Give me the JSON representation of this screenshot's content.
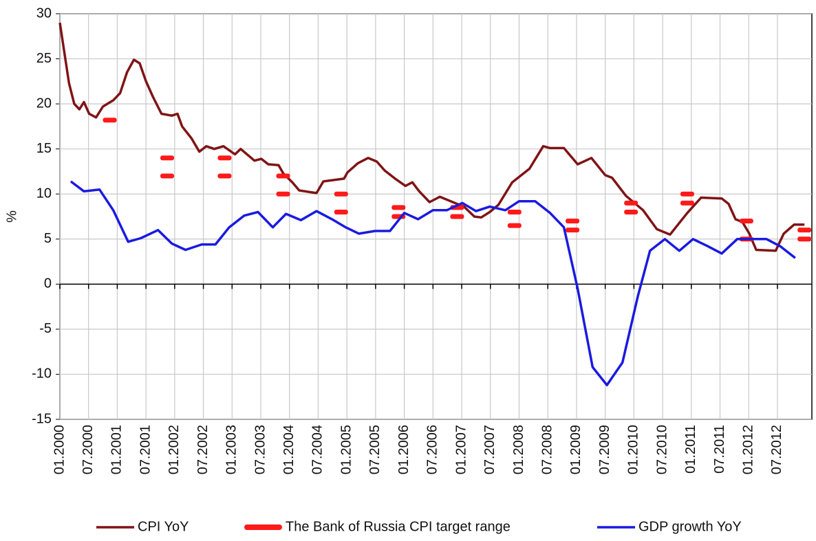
{
  "chart_data": {
    "type": "line",
    "ylabel": "%",
    "xlim": [
      2000,
      2013.1
    ],
    "ylim": [
      -15,
      30
    ],
    "yticks": [
      -15,
      -10,
      -5,
      0,
      5,
      10,
      15,
      20,
      25,
      30
    ],
    "xticks": [
      {
        "value": 2000,
        "label": "01.2000"
      },
      {
        "value": 2000.5,
        "label": "07.2000"
      },
      {
        "value": 2001,
        "label": "01.2001"
      },
      {
        "value": 2001.5,
        "label": "07.2001"
      },
      {
        "value": 2002,
        "label": "01.2002"
      },
      {
        "value": 2002.5,
        "label": "07.2002"
      },
      {
        "value": 2003,
        "label": "01.2003"
      },
      {
        "value": 2003.5,
        "label": "07.2003"
      },
      {
        "value": 2004,
        "label": "01.2004"
      },
      {
        "value": 2004.5,
        "label": "07.2004"
      },
      {
        "value": 2005,
        "label": "01.2005"
      },
      {
        "value": 2005.5,
        "label": "07.2005"
      },
      {
        "value": 2006,
        "label": "01.2006"
      },
      {
        "value": 2006.5,
        "label": "07.2006"
      },
      {
        "value": 2007,
        "label": "01.2007"
      },
      {
        "value": 2007.5,
        "label": "07.2007"
      },
      {
        "value": 2008,
        "label": "01.2008"
      },
      {
        "value": 2008.5,
        "label": "07.2008"
      },
      {
        "value": 2009,
        "label": "01.2009"
      },
      {
        "value": 2009.5,
        "label": "07.2009"
      },
      {
        "value": 2010,
        "label": "01.2010"
      },
      {
        "value": 2010.5,
        "label": "07.2010"
      },
      {
        "value": 2011,
        "label": "01.2011"
      },
      {
        "value": 2011.5,
        "label": "07.2011"
      },
      {
        "value": 2012,
        "label": "01.2012"
      },
      {
        "value": 2012.5,
        "label": "07.2012"
      }
    ],
    "grid": true,
    "legend": "bottom",
    "series": [
      {
        "name": "CPI YoY",
        "color": "#7f1416",
        "marker": "line",
        "x": [
          2000.0,
          2000.16,
          2000.25,
          2000.34,
          2000.42,
          2000.51,
          2000.63,
          2000.75,
          2000.93,
          2001.05,
          2001.17,
          2001.29,
          2001.39,
          2001.5,
          2001.62,
          2001.77,
          2001.95,
          2002.05,
          2002.13,
          2002.29,
          2002.43,
          2002.55,
          2002.69,
          2002.85,
          2003.05,
          2003.15,
          2003.39,
          2003.51,
          2003.63,
          2003.81,
          2003.89,
          2004.05,
          2004.17,
          2004.47,
          2004.59,
          2004.95,
          2005.01,
          2005.19,
          2005.37,
          2005.52,
          2005.66,
          2005.84,
          2006.02,
          2006.14,
          2006.26,
          2006.44,
          2006.62,
          2006.92,
          2007.04,
          2007.22,
          2007.34,
          2007.49,
          2007.64,
          2007.88,
          2008.18,
          2008.42,
          2008.54,
          2008.78,
          2009.02,
          2009.26,
          2009.5,
          2009.62,
          2009.86,
          2010.16,
          2010.4,
          2010.63,
          2010.93,
          2011.17,
          2011.53,
          2011.65,
          2011.77,
          2011.89,
          2012.01,
          2012.13,
          2012.47,
          2012.61,
          2012.79,
          2012.97
        ],
        "values": [
          29,
          22.3,
          20,
          19.4,
          20.2,
          18.9,
          18.5,
          19.7,
          20.4,
          21.2,
          23.5,
          24.9,
          24.5,
          22.5,
          20.8,
          18.9,
          18.7,
          18.9,
          17.5,
          16.2,
          14.7,
          15.3,
          15.0,
          15.3,
          14.4,
          15.0,
          13.7,
          13.9,
          13.3,
          13.2,
          12.3,
          11.3,
          10.4,
          10.1,
          11.4,
          11.7,
          12.4,
          13.4,
          14.0,
          13.6,
          12.6,
          11.7,
          10.9,
          11.3,
          10.3,
          9.1,
          9.7,
          8.9,
          8.6,
          7.5,
          7.4,
          8.0,
          8.8,
          11.3,
          12.8,
          15.3,
          15.1,
          15.1,
          13.3,
          14.0,
          12.1,
          11.8,
          9.8,
          8.2,
          6.1,
          5.5,
          7.9,
          9.6,
          9.5,
          8.9,
          7.2,
          6.9,
          5.6,
          3.8,
          3.7,
          5.6,
          6.6,
          6.6
        ]
      },
      {
        "name": "The Bank of Russia CPI target range",
        "color": "#ff1a1a",
        "marker": "dash",
        "x": [
          2000.87,
          2001.87,
          2001.87,
          2002.87,
          2002.87,
          2003.89,
          2003.89,
          2004.9,
          2004.9,
          2005.9,
          2005.9,
          2006.92,
          2006.92,
          2007.92,
          2007.92,
          2008.93,
          2008.93,
          2009.95,
          2009.95,
          2010.93,
          2010.93,
          2011.96,
          2011.96,
          2012.97,
          2012.97
        ],
        "values": [
          18.2,
          14,
          12,
          14,
          12,
          12,
          10,
          10,
          8,
          8.5,
          7.5,
          8.5,
          7.5,
          8,
          6.5,
          7,
          6,
          9,
          8,
          10,
          9,
          7,
          5,
          6,
          5
        ]
      },
      {
        "name": "GDP growth YoY",
        "color": "#1a1ae0",
        "marker": "line",
        "x": [
          2000.19,
          2000.42,
          2000.69,
          2000.93,
          2001.19,
          2001.41,
          2001.71,
          2001.95,
          2002.19,
          2002.47,
          2002.71,
          2002.95,
          2003.21,
          2003.45,
          2003.71,
          2003.94,
          2004.2,
          2004.47,
          2004.74,
          2004.98,
          2005.21,
          2005.49,
          2005.75,
          2006.0,
          2006.24,
          2006.5,
          2006.74,
          2007.01,
          2007.25,
          2007.49,
          2007.76,
          2008.0,
          2008.28,
          2008.54,
          2008.78,
          2009.02,
          2009.28,
          2009.53,
          2009.8,
          2010.07,
          2010.28,
          2010.54,
          2010.79,
          2011.03,
          2011.29,
          2011.53,
          2011.8,
          2012.05,
          2012.31,
          2012.55,
          2012.81
        ],
        "values": [
          11.4,
          10.3,
          10.5,
          8.2,
          4.7,
          5.1,
          6.0,
          4.5,
          3.8,
          4.4,
          4.4,
          6.3,
          7.6,
          8.0,
          6.3,
          7.8,
          7.1,
          8.1,
          7.2,
          6.3,
          5.6,
          5.9,
          5.9,
          7.9,
          7.2,
          8.2,
          8.2,
          9.0,
          8.1,
          8.6,
          8.2,
          9.2,
          9.2,
          7.9,
          6.3,
          -0.5,
          -9.2,
          -11.2,
          -8.7,
          -1.3,
          3.7,
          5.0,
          3.7,
          5.0,
          4.2,
          3.4,
          5.0,
          5.0,
          5.0,
          4.2,
          2.9
        ]
      }
    ]
  }
}
